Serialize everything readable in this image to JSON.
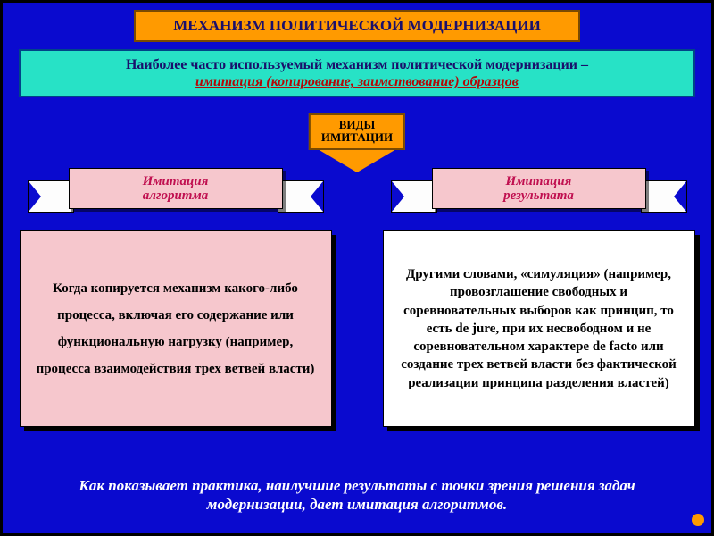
{
  "colors": {
    "slideBg": "#0a0acf",
    "slideBorder": "#000000",
    "titleBg": "#ff9a00",
    "titleBorder": "#7a4a00",
    "titleText": "#1a0f6b",
    "introBg": "#27e2c6",
    "introBorder": "#004488",
    "introText1": "#1a0f6b",
    "introText2": "#b40808",
    "typesBg": "#ff9a00",
    "typesBorder": "#7a4a00",
    "typesText": "#000000",
    "arrowFill": "#ff9a00",
    "ribbonTail": "#fdfdfd",
    "ribbonTailBorder": "#000000",
    "ribbonCenter": "#f6c7cd",
    "ribbonCenterBorder": "#000000",
    "ribbonText": "#c01050",
    "leftBoxBg": "#f6c7cd",
    "leftBoxBorder": "#000000",
    "leftBoxText": "#000000",
    "rightBoxBg": "#ffffff",
    "rightBoxBorder": "#000000",
    "rightBoxText": "#000000",
    "footerText": "#ffffff",
    "cornerDot": "#ff9a00"
  },
  "sizes": {
    "titleFont": 17,
    "introFont": 16,
    "typesFont": 13,
    "ribbonFont": 15,
    "contentFont": 15,
    "footerFont": 17
  },
  "title": "МЕХАНИЗМ ПОЛИТИЧЕСКОЙ МОДЕРНИЗАЦИИ",
  "intro": {
    "line1": "Наиболее часто используемый механизм политической модернизации –",
    "line2": "имитация (копирование, заимствование) образцов"
  },
  "typesLabel": {
    "line1": "ВИДЫ",
    "line2": "ИМИТАЦИИ"
  },
  "left": {
    "ribbon1": "Имитация",
    "ribbon2": "алгоритма",
    "content": "Когда копируется механизм какого-либо процесса, включая его содержание или функциональную нагрузку (например, процесса взаимодействия трех ветвей власти)"
  },
  "right": {
    "ribbon1": "Имитация",
    "ribbon2": "результата",
    "content": "Другими словами, «симуляция» (например, провозглашение свободных и соревновательных выборов как принцип, то есть de jure, при их несвободном и не соревновательном характере de facto или создание трех ветвей власти без фактической реализации принципа разделения властей)"
  },
  "footer": "Как показывает практика, наилучшие результаты с точки зрения решения задач модернизации, дает имитация алгоритмов."
}
